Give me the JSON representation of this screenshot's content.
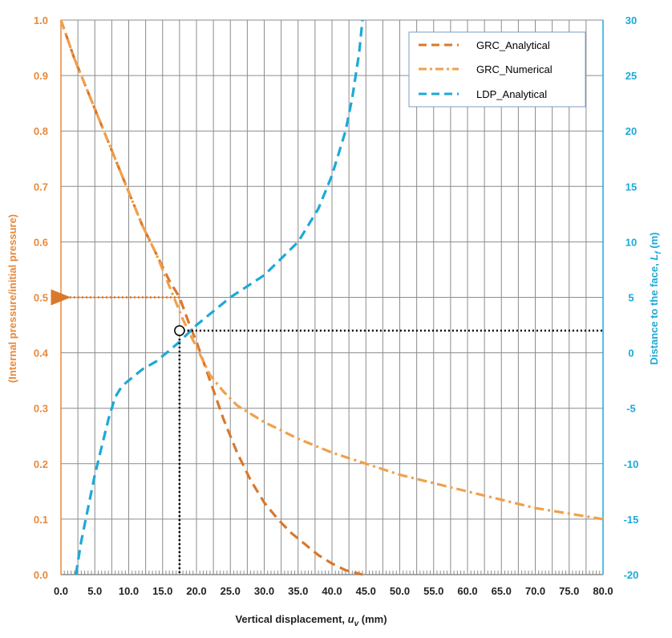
{
  "chart_data": {
    "type": "line",
    "xlabel_main": "Vertical displacement, ",
    "xlabel_symbol": "u",
    "xlabel_sub": "v",
    "xlabel_unit": " (mm)",
    "ylabel_left": "(Internal pressure/initial pressure)",
    "ylabel_right_main": "Distance to the face, ",
    "ylabel_right_symbol": "L",
    "ylabel_right_sub": "f",
    "ylabel_right_unit": " (m)",
    "xlim": [
      0,
      80
    ],
    "ylim_left": [
      0,
      1
    ],
    "ylim_right": [
      -20,
      30
    ],
    "x_ticks": [
      "0.0",
      "5.0",
      "10.0",
      "15.0",
      "20.0",
      "25.0",
      "30.0",
      "35.0",
      "40.0",
      "45.0",
      "50.0",
      "55.0",
      "60.0",
      "65.0",
      "70.0",
      "75.0",
      "80.0"
    ],
    "y_left_ticks": [
      "0.0",
      "0.1",
      "0.2",
      "0.3",
      "0.4",
      "0.5",
      "0.6",
      "0.7",
      "0.8",
      "0.9",
      "1.0"
    ],
    "y_right_ticks": [
      "-20",
      "-15",
      "-10",
      "-5",
      "0",
      "5",
      "10",
      "15",
      "20",
      "25",
      "30"
    ],
    "grid": true,
    "legend_position": "top-right",
    "series": [
      {
        "name": "GRC_Analytical",
        "axis": "left",
        "style": "dashed",
        "color": "#D9782D",
        "points": [
          [
            0,
            1.0
          ],
          [
            2,
            0.93
          ],
          [
            4,
            0.87
          ],
          [
            6,
            0.81
          ],
          [
            8,
            0.75
          ],
          [
            10,
            0.69
          ],
          [
            12,
            0.63
          ],
          [
            14,
            0.58
          ],
          [
            16,
            0.53
          ],
          [
            17.5,
            0.5
          ],
          [
            19,
            0.45
          ],
          [
            20,
            0.42
          ],
          [
            22,
            0.35
          ],
          [
            24,
            0.28
          ],
          [
            26,
            0.22
          ],
          [
            28,
            0.17
          ],
          [
            30,
            0.13
          ],
          [
            32,
            0.1
          ],
          [
            34,
            0.075
          ],
          [
            36,
            0.055
          ],
          [
            38,
            0.035
          ],
          [
            40,
            0.02
          ],
          [
            42,
            0.008
          ],
          [
            44.5,
            0.0
          ]
        ]
      },
      {
        "name": "GRC_Numerical",
        "axis": "left",
        "style": "dash-dot",
        "color": "#F0A04B",
        "points": [
          [
            0,
            1.0
          ],
          [
            2,
            0.93
          ],
          [
            4,
            0.87
          ],
          [
            6,
            0.81
          ],
          [
            8,
            0.75
          ],
          [
            10,
            0.69
          ],
          [
            12,
            0.63
          ],
          [
            14,
            0.58
          ],
          [
            16,
            0.52
          ],
          [
            18,
            0.46
          ],
          [
            20,
            0.41
          ],
          [
            22,
            0.36
          ],
          [
            24,
            0.33
          ],
          [
            26,
            0.305
          ],
          [
            28,
            0.29
          ],
          [
            30,
            0.275
          ],
          [
            35,
            0.245
          ],
          [
            40,
            0.22
          ],
          [
            45,
            0.2
          ],
          [
            50,
            0.18
          ],
          [
            55,
            0.165
          ],
          [
            60,
            0.15
          ],
          [
            65,
            0.135
          ],
          [
            70,
            0.12
          ],
          [
            75,
            0.11
          ],
          [
            80,
            0.1
          ]
        ]
      },
      {
        "name": "LDP_Analytical",
        "axis": "right",
        "style": "dashed",
        "color": "#1CA9D8",
        "points": [
          [
            2.2,
            -20
          ],
          [
            3,
            -17
          ],
          [
            4,
            -14
          ],
          [
            5,
            -11
          ],
          [
            6,
            -8.5
          ],
          [
            7,
            -6
          ],
          [
            8,
            -4
          ],
          [
            9,
            -3
          ],
          [
            10,
            -2.5
          ],
          [
            12,
            -1.5
          ],
          [
            14,
            -0.8
          ],
          [
            16,
            0.2
          ],
          [
            17.5,
            1.0
          ],
          [
            18,
            1.3
          ],
          [
            20,
            2.5
          ],
          [
            25,
            5
          ],
          [
            30,
            7
          ],
          [
            35,
            10
          ],
          [
            38,
            13
          ],
          [
            40,
            16
          ],
          [
            42,
            20
          ],
          [
            43,
            23
          ],
          [
            44,
            27
          ],
          [
            44.5,
            30
          ]
        ]
      }
    ],
    "annotations": {
      "marker": {
        "x": 17.5,
        "y_left": 0.44
      },
      "pressure_arrow": {
        "from_x": 17.5,
        "to_x": 0,
        "y_left": 0.5,
        "color": "#D9782D"
      },
      "vertical_guide": {
        "x": 17.5,
        "from_y_left": 0.44,
        "to_y_left": 0.0
      },
      "horizontal_guide": {
        "y_left": 0.44,
        "from_x": 17.5,
        "to_x": 80
      }
    }
  }
}
